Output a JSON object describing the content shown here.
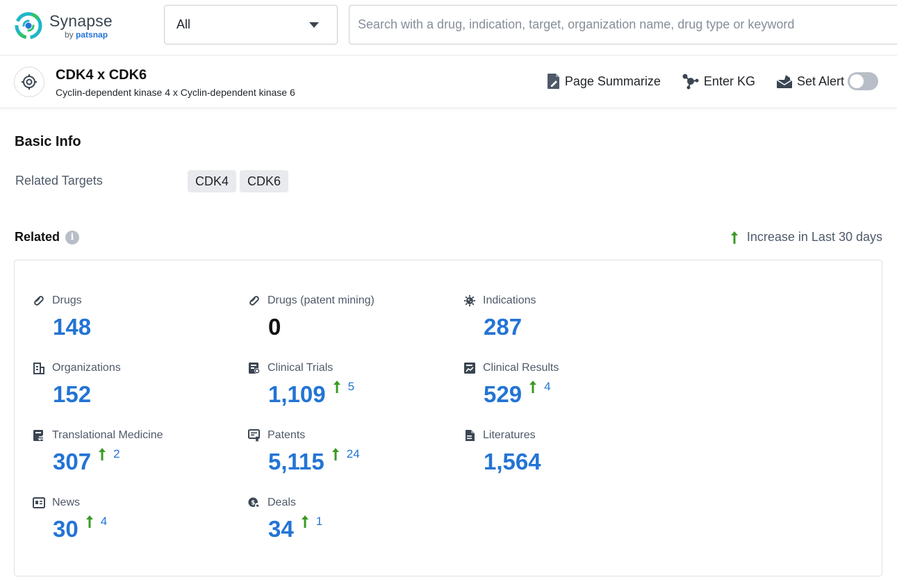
{
  "app": {
    "logo_name": "Synapse",
    "logo_by": "by",
    "logo_brand": "patsnap"
  },
  "search": {
    "type_value": "All",
    "placeholder": "Search with a drug, indication, target, organization name, drug type or keyword"
  },
  "target": {
    "title": "CDK4 x CDK6",
    "subtitle": "Cyclin-dependent kinase 4 x Cyclin-dependent kinase 6"
  },
  "actions": {
    "summarize": "Page Summarize",
    "kg": "Enter KG",
    "alert": "Set Alert",
    "alert_on": false
  },
  "basic_info": {
    "title": "Basic Info",
    "related_targets_label": "Related Targets",
    "related_targets": [
      "CDK4",
      "CDK6"
    ]
  },
  "related": {
    "title": "Related",
    "increase_note": "Increase in Last 30 days",
    "stats": {
      "drugs": {
        "label": "Drugs",
        "value": "148",
        "icon": "pill-icon"
      },
      "drugs_patent": {
        "label": "Drugs (patent mining)",
        "value": "0",
        "icon": "pill-icon"
      },
      "indications": {
        "label": "Indications",
        "value": "287",
        "icon": "virus-icon"
      },
      "organizations": {
        "label": "Organizations",
        "value": "152",
        "icon": "building-icon"
      },
      "clinical_trials": {
        "label": "Clinical Trials",
        "value": "1,109",
        "delta": "5",
        "icon": "clipboard-icon"
      },
      "clinical_results": {
        "label": "Clinical Results",
        "value": "529",
        "delta": "4",
        "icon": "chart-report-icon"
      },
      "translational_medicine": {
        "label": "Translational Medicine",
        "value": "307",
        "delta": "2",
        "icon": "document-swap-icon"
      },
      "patents": {
        "label": "Patents",
        "value": "5,115",
        "delta": "24",
        "icon": "patent-icon"
      },
      "literatures": {
        "label": "Literatures",
        "value": "1,564",
        "icon": "file-icon"
      },
      "news": {
        "label": "News",
        "value": "30",
        "delta": "4",
        "icon": "newspaper-icon"
      },
      "deals": {
        "label": "Deals",
        "value": "34",
        "delta": "1",
        "icon": "handshake-icon"
      }
    }
  },
  "colors": {
    "accent_blue": "#2374d5",
    "increase_green": "#3a9a24",
    "muted_text": "#4e5969"
  }
}
